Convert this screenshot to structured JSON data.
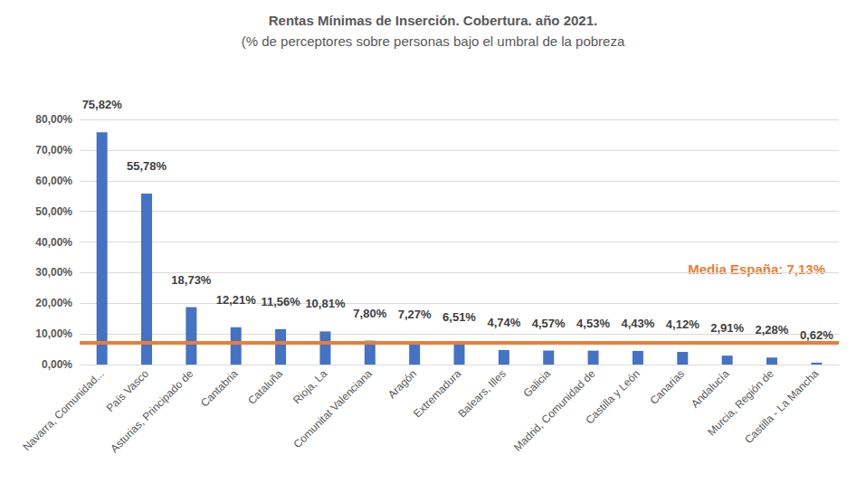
{
  "chart_data": {
    "type": "bar",
    "title": "Rentas Mínimas de Inserción. Cobertura. año 2021.",
    "subtitle": "(% de perceptores sobre personas bajo el umbral de la pobreza",
    "categories": [
      "Navarra, Comunidad...",
      "País Vasco",
      "Asturias, Principado de",
      "Cantabria",
      "Cataluña",
      "Rioja, La",
      "Comunitat Valenciana",
      "Aragón",
      "Extremadura",
      "Balears, Illes",
      "Galicia",
      "Madrid, Comunidad de",
      "Castilla y León",
      "Canarias",
      "Andalucía",
      "Murcia, Región de",
      "Castilla - La Mancha"
    ],
    "values": [
      75.82,
      55.78,
      18.73,
      12.21,
      11.56,
      10.81,
      7.8,
      7.27,
      6.51,
      4.74,
      4.57,
      4.53,
      4.43,
      4.12,
      2.91,
      2.28,
      0.62
    ],
    "value_labels": [
      "75,82%",
      "55,78%",
      "18,73%",
      "12,21%",
      "11,56%",
      "10,81%",
      "7,80%",
      "7,27%",
      "6,51%",
      "4,74%",
      "4,57%",
      "4,53%",
      "4,43%",
      "4,12%",
      "2,91%",
      "2,28%",
      "0,62%"
    ],
    "data_labels": true,
    "color": "#4472c4",
    "ylim": [
      0,
      80
    ],
    "yticks": [
      {
        "value": 0,
        "label": "0,00%"
      },
      {
        "value": 10,
        "label": "10,00%"
      },
      {
        "value": 20,
        "label": "20,00%"
      },
      {
        "value": 30,
        "label": "30,00%"
      },
      {
        "value": 40,
        "label": "40,00%"
      },
      {
        "value": 50,
        "label": "50,00%"
      },
      {
        "value": 60,
        "label": "60,00%"
      },
      {
        "value": 70,
        "label": "70,00%"
      },
      {
        "value": 80,
        "label": "80,00%"
      }
    ],
    "grid": true,
    "annotations": [
      {
        "text": "Media España: 7,13%",
        "y": 7.13,
        "color": "#ed7d31"
      }
    ]
  }
}
